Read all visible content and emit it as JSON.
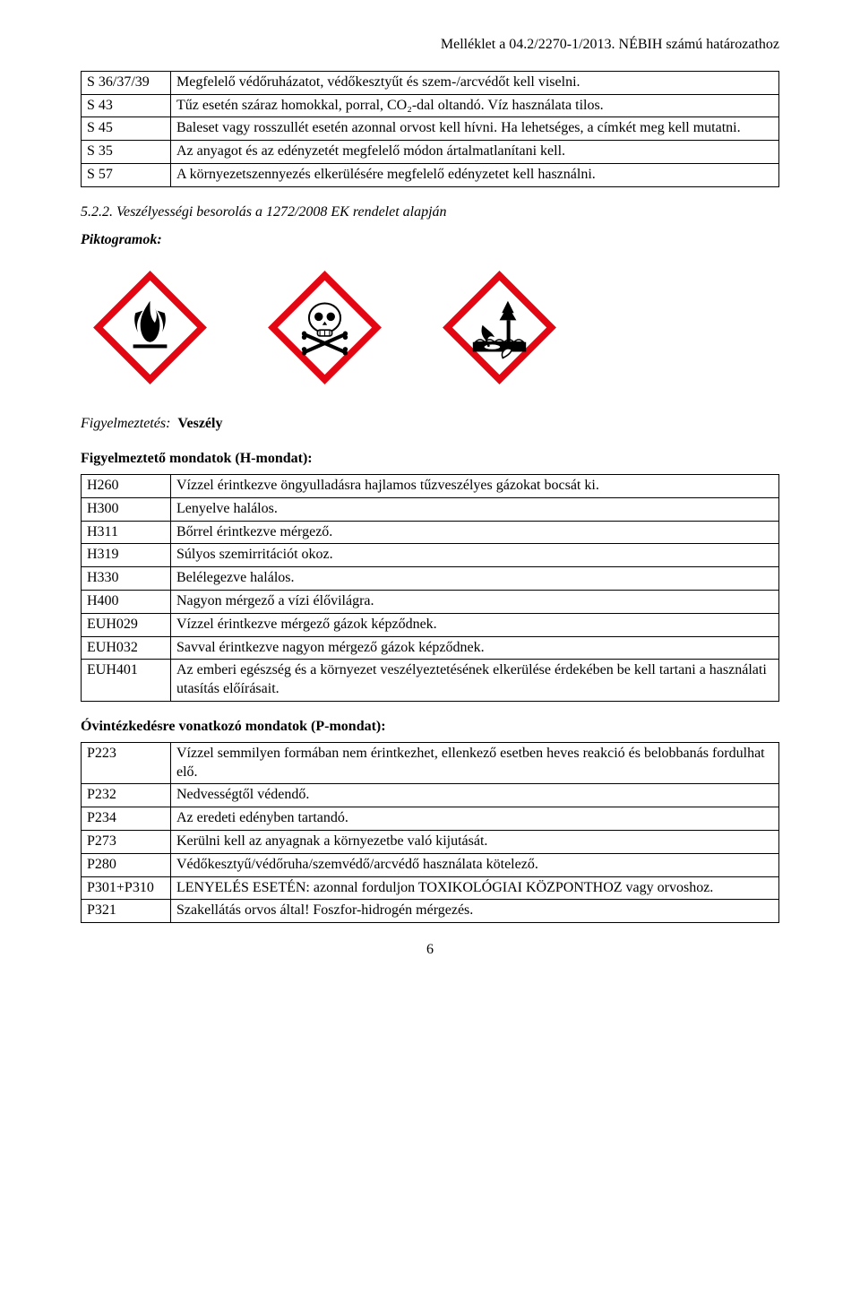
{
  "header": "Melléklet a 04.2/2270-1/2013. NÉBIH számú határozathoz",
  "s_table": {
    "rows": [
      {
        "code": "S 36/37/39",
        "text": "Megfelelő védőruházatot, védőkesztyűt és szem-/arcvédőt kell viselni."
      },
      {
        "code": "S 43",
        "text": "Tűz esetén száraz homokkal, porral, CO₂-dal oltandó. Víz használata tilos."
      },
      {
        "code": "S 45",
        "text": "Baleset vagy rosszullét esetén azonnal orvost kell hívni. Ha lehetséges, a címkét meg kell mutatni."
      },
      {
        "code": "S 35",
        "text": "Az anyagot és az edényzetét megfelelő módon ártalmatlanítani kell."
      },
      {
        "code": "S 57",
        "text": "A környezetszennyezés elkerülésére megfelelő edényzetet kell használni."
      }
    ]
  },
  "section_522": "5.2.2. Veszélyességi besorolás a 1272/2008 EK rendelet alapján",
  "pictograms_label": "Piktogramok:",
  "pictograms": {
    "border_color": "#e30613",
    "fill_color": "#ffffff",
    "symbol_color": "#000000",
    "items": [
      "flame-icon",
      "skull-crossbones-icon",
      "environment-icon"
    ]
  },
  "attention": {
    "label": "Figyelmeztetés:",
    "value": "Veszély"
  },
  "h_title": "Figyelmeztető mondatok (H-mondat):",
  "h_table": {
    "rows": [
      {
        "code": "H260",
        "text": "Vízzel érintkezve öngyulladásra hajlamos tűzveszélyes gázokat bocsát ki."
      },
      {
        "code": "H300",
        "text": "Lenyelve halálos."
      },
      {
        "code": "H311",
        "text": "Bőrrel érintkezve mérgező."
      },
      {
        "code": "H319",
        "text": "Súlyos szemirritációt okoz."
      },
      {
        "code": "H330",
        "text": "Belélegezve halálos."
      },
      {
        "code": "H400",
        "text": "Nagyon mérgező a vízi élővilágra."
      },
      {
        "code": "EUH029",
        "text": "Vízzel érintkezve mérgező gázok képződnek."
      },
      {
        "code": "EUH032",
        "text": "Savval érintkezve nagyon mérgező gázok képződnek."
      },
      {
        "code": "EUH401",
        "text": "Az emberi egészség és a környezet veszélyeztetésének elkerülése érdekében be kell tartani a használati utasítás előírásait."
      }
    ]
  },
  "p_title": "Óvintézkedésre vonatkozó mondatok (P-mondat):",
  "p_table": {
    "rows": [
      {
        "code": "P223",
        "text": "Vízzel semmilyen formában nem érintkezhet, ellenkező esetben heves reakció és belobbanás fordulhat elő."
      },
      {
        "code": "P232",
        "text": "Nedvességtől védendő."
      },
      {
        "code": "P234",
        "text": "Az eredeti edényben tartandó."
      },
      {
        "code": "P273",
        "text": "Kerülni kell az anyagnak a környezetbe való kijutását."
      },
      {
        "code": "P280",
        "text": "Védőkesztyű/védőruha/szemvédő/arcvédő használata kötelező."
      },
      {
        "code": "P301+P310",
        "text": "LENYELÉS ESETÉN: azonnal forduljon TOXIKOLÓGIAI KÖZPONTHOZ vagy orvoshoz."
      },
      {
        "code": "P321",
        "text": "Szakellátás orvos által! Foszfor-hidrogén mérgezés."
      }
    ]
  },
  "page_number": "6"
}
